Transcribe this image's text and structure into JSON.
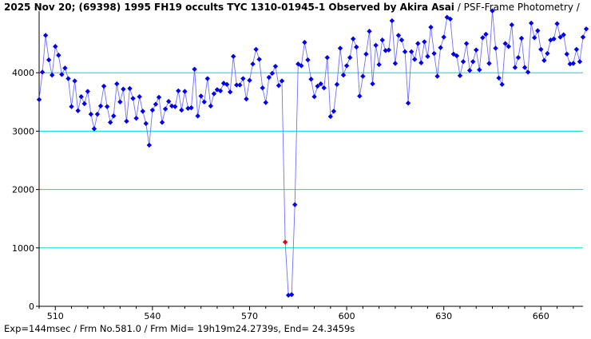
{
  "header": {
    "title_main": "2025 Nov 20; (69398) 1995 FH19 occults TYC 1310-01945-1 Observed by Akira Asai",
    "title_method": "/ PSF-Frame Photometry /"
  },
  "footer": {
    "text": "Exp=144msec / Frm No.581.0 / Frm Mid= 19h19m24.2739s,  End= 24.3459s"
  },
  "colors": {
    "points": "#0000ee",
    "line": "#7070ff",
    "highlight": "#ee0000",
    "grid": "#00d8d8",
    "axis": "#000000"
  },
  "chart_data": {
    "type": "line",
    "x_start": 505,
    "x_step": 1,
    "xlim": [
      505,
      673
    ],
    "ylim": [
      0,
      5000
    ],
    "x_ticks": [
      510,
      540,
      570,
      600,
      630,
      660
    ],
    "y_ticks": [
      0,
      1000,
      2000,
      3000,
      4000
    ],
    "grid_y": [
      1000,
      2000,
      3000,
      4000
    ],
    "highlight_x": 581,
    "values": [
      3540,
      4010,
      4640,
      4220,
      3960,
      4450,
      4300,
      3970,
      4080,
      3900,
      3420,
      3860,
      3350,
      3590,
      3470,
      3680,
      3290,
      3040,
      3290,
      3430,
      3770,
      3420,
      3150,
      3260,
      3810,
      3500,
      3720,
      3170,
      3730,
      3560,
      3220,
      3590,
      3340,
      3130,
      2760,
      3360,
      3460,
      3580,
      3150,
      3380,
      3510,
      3430,
      3420,
      3690,
      3360,
      3680,
      3390,
      3400,
      4060,
      3260,
      3600,
      3500,
      3900,
      3430,
      3640,
      3710,
      3690,
      3820,
      3800,
      3670,
      4280,
      3790,
      3790,
      3900,
      3550,
      3870,
      4150,
      4400,
      4230,
      3740,
      3490,
      3920,
      3990,
      4110,
      3780,
      3860,
      1100,
      190,
      200,
      1740,
      4150,
      4120,
      4520,
      4220,
      3890,
      3590,
      3770,
      3810,
      3740,
      4260,
      3250,
      3340,
      3800,
      4420,
      3960,
      4120,
      4260,
      4580,
      4440,
      3600,
      3940,
      4320,
      4710,
      3810,
      4470,
      4140,
      4560,
      4380,
      4390,
      4890,
      4160,
      4640,
      4560,
      4360,
      3480,
      4360,
      4230,
      4500,
      4170,
      4530,
      4280,
      4780,
      4330,
      3940,
      4430,
      4610,
      4950,
      4920,
      4320,
      4290,
      3950,
      4190,
      4500,
      4040,
      4190,
      4390,
      4050,
      4600,
      4660,
      4160,
      5060,
      4420,
      3910,
      3800,
      4500,
      4450,
      4820,
      4090,
      4260,
      4590,
      4090,
      4010,
      4850,
      4600,
      4720,
      4400,
      4210,
      4330,
      4560,
      4580,
      4840,
      4610,
      4650,
      4320,
      4150,
      4160,
      4400,
      4190,
      4610,
      4750
    ]
  }
}
